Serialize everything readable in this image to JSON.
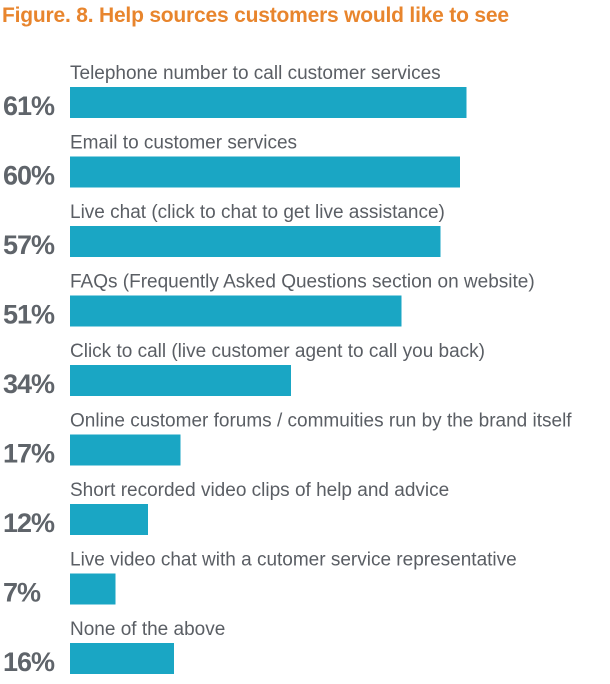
{
  "chart_data": {
    "type": "bar",
    "orientation": "horizontal",
    "title": "Figure. 8. Help sources customers would like to see",
    "categories": [
      "Telephone number to call customer services",
      "Email to customer services",
      "Live chat (click to chat to get live assistance)",
      "FAQs (Frequently Asked Questions section on website)",
      "Click to call (live customer agent to call you back)",
      "Online customer forums / commuities run by the brand itself",
      "Short recorded video clips of help and advice",
      "Live video chat with a cutomer service representative",
      "None of the above"
    ],
    "values": [
      61,
      60,
      57,
      51,
      34,
      17,
      12,
      7,
      16
    ],
    "value_labels": [
      "61%",
      "60%",
      "57%",
      "51%",
      "34%",
      "17%",
      "12%",
      "7%",
      "16%"
    ],
    "unit": "%",
    "xlim": [
      0,
      100
    ],
    "grid": false,
    "legend": "none",
    "colors": {
      "bar": "#1aa6c4",
      "title": "#e8852d",
      "text": "#5a5e64"
    }
  }
}
